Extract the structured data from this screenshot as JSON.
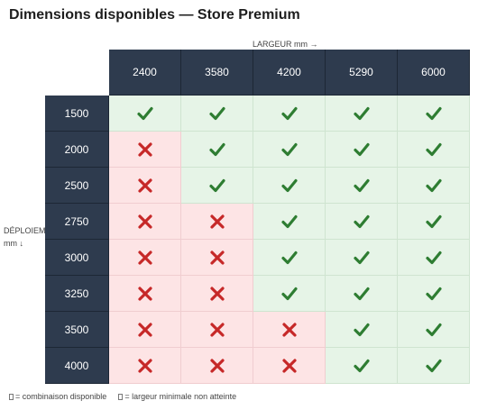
{
  "title": "Dimensions disponibles — Store Premium",
  "x_axis_label": "LARGEUR mm →",
  "y_axis_label": "DÉPLOIEMENT mm ↓",
  "columns": [
    "2400",
    "3580",
    "4200",
    "5290",
    "6000"
  ],
  "rows": [
    {
      "label": "1500",
      "cells": [
        true,
        true,
        true,
        true,
        true
      ]
    },
    {
      "label": "2000",
      "cells": [
        false,
        true,
        true,
        true,
        true
      ]
    },
    {
      "label": "2500",
      "cells": [
        false,
        true,
        true,
        true,
        true
      ]
    },
    {
      "label": "2750",
      "cells": [
        false,
        false,
        true,
        true,
        true
      ]
    },
    {
      "label": "3000",
      "cells": [
        false,
        false,
        true,
        true,
        true
      ]
    },
    {
      "label": "3250",
      "cells": [
        false,
        false,
        true,
        true,
        true
      ]
    },
    {
      "label": "3500",
      "cells": [
        false,
        false,
        false,
        true,
        true
      ]
    },
    {
      "label": "4000",
      "cells": [
        false,
        false,
        false,
        true,
        true
      ]
    }
  ],
  "legend": {
    "available": "= combinaison disponible",
    "unavailable": "= largeur minimale non atteinte"
  },
  "colors": {
    "header_bg": "#2e3b4e",
    "available_bg": "#e6f4e7",
    "available_mark": "#2e7d32",
    "unavailable_bg": "#fde4e5",
    "unavailable_mark": "#c62828"
  },
  "icons": {
    "available": "check-icon",
    "unavailable": "cross-icon"
  }
}
